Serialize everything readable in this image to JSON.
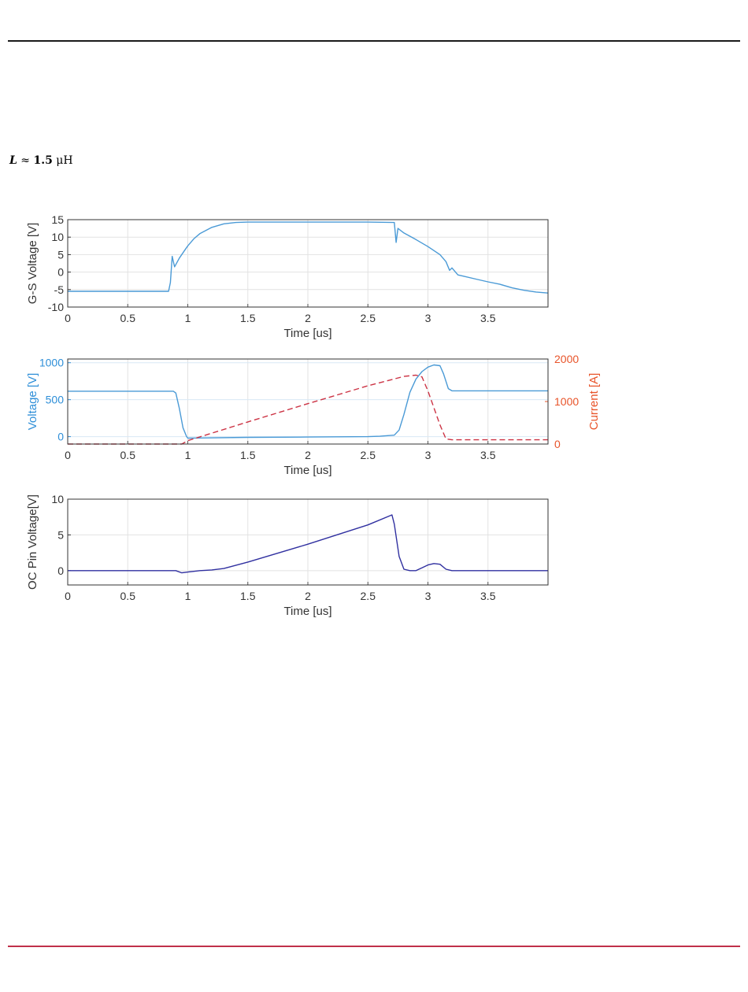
{
  "formula": {
    "variable": "L",
    "approx": "≈",
    "value": "1.5",
    "unit": "μH"
  },
  "chart_data": [
    {
      "type": "line",
      "xlabel": "Time [us]",
      "ylabel": "G-S Voltage [V]",
      "xlim": [
        0,
        4
      ],
      "ylim": [
        -10,
        15
      ],
      "xticks": [
        "0",
        "0.5",
        "1",
        "1.5",
        "2",
        "2.5",
        "3",
        "3.5"
      ],
      "yticks": [
        "15",
        "10",
        "5",
        "0",
        "-5",
        "-10"
      ],
      "grid": true,
      "series": [
        {
          "color": "#4a9ad6",
          "x": [
            0,
            0.84,
            0.855,
            0.87,
            0.89,
            0.93,
            0.98,
            1.0,
            1.05,
            1.1,
            1.2,
            1.3,
            1.4,
            1.5,
            2.0,
            2.5,
            2.72,
            2.735,
            2.75,
            2.8,
            2.9,
            3.0,
            3.1,
            3.15,
            3.18,
            3.2,
            3.25,
            3.3,
            3.4,
            3.5,
            3.6,
            3.7,
            3.8,
            3.9,
            4.0
          ],
          "y": [
            -5.5,
            -5.5,
            -3,
            4.5,
            1.5,
            4,
            6.5,
            7.5,
            9.5,
            11,
            12.8,
            13.8,
            14.2,
            14.3,
            14.3,
            14.3,
            14.2,
            8.5,
            12.5,
            11.2,
            9.3,
            7.3,
            5,
            3,
            0.5,
            1.2,
            -0.8,
            -1.2,
            -2,
            -2.8,
            -3.5,
            -4.5,
            -5.2,
            -5.7,
            -6
          ]
        }
      ]
    },
    {
      "type": "line",
      "xlabel": "Time [us]",
      "ylabel": "Voltage [V]",
      "ylabel_right": "Current [A]",
      "xlim": [
        0,
        4
      ],
      "ylim": [
        -100,
        1050
      ],
      "ylim_right": [
        0,
        2000
      ],
      "xticks": [
        "0",
        "0.5",
        "1",
        "1.5",
        "2",
        "2.5",
        "3",
        "3.5"
      ],
      "yticks": [
        "1000",
        "500",
        "0"
      ],
      "yticks_right": [
        "2000",
        "1000",
        "0"
      ],
      "grid": true,
      "colors": {
        "left": "#2f8fd8",
        "right": "#e8542a"
      },
      "series": [
        {
          "axis": "left",
          "color": "#4a9ad6",
          "x": [
            0,
            0.88,
            0.9,
            0.93,
            0.96,
            0.99,
            1.0,
            1.5,
            2.0,
            2.5,
            2.6,
            2.72,
            2.76,
            2.8,
            2.85,
            2.9,
            2.95,
            3.0,
            3.05,
            3.1,
            3.13,
            3.17,
            3.2,
            4.0
          ],
          "y": [
            615,
            615,
            590,
            380,
            120,
            0,
            -20,
            -10,
            -5,
            0,
            5,
            20,
            90,
            300,
            600,
            780,
            880,
            940,
            970,
            960,
            850,
            650,
            620,
            620
          ]
        },
        {
          "axis": "right",
          "color": "#cc3344",
          "dashed": true,
          "x": [
            0,
            0.95,
            1.0,
            1.5,
            2.0,
            2.5,
            2.8,
            2.9,
            2.95,
            3.0,
            3.1,
            3.15,
            3.2,
            4.0
          ],
          "y": [
            0,
            0,
            80,
            520,
            950,
            1370,
            1590,
            1620,
            1580,
            1250,
            450,
            120,
            100,
            100
          ]
        }
      ]
    },
    {
      "type": "line",
      "xlabel": "Time [us]",
      "ylabel": "OC Pin Voltage[V]",
      "xlim": [
        0,
        4
      ],
      "ylim": [
        -2,
        10
      ],
      "xticks": [
        "0",
        "0.5",
        "1",
        "1.5",
        "2",
        "2.5",
        "3",
        "3.5"
      ],
      "yticks": [
        "10",
        "5",
        "0"
      ],
      "grid": true,
      "series": [
        {
          "color": "#3030a0",
          "x": [
            0,
            0.84,
            0.9,
            0.95,
            1.0,
            1.1,
            1.2,
            1.3,
            1.5,
            2.0,
            2.5,
            2.7,
            2.72,
            2.76,
            2.8,
            2.85,
            2.9,
            2.95,
            3.0,
            3.05,
            3.1,
            3.15,
            3.2,
            3.3,
            4.0
          ],
          "y": [
            0,
            0,
            0,
            -0.3,
            -0.2,
            0,
            0.1,
            0.3,
            1.2,
            3.7,
            6.4,
            7.8,
            6.5,
            2.0,
            0.2,
            0,
            0,
            0.4,
            0.8,
            1.0,
            0.9,
            0.2,
            0,
            0,
            0
          ]
        }
      ]
    }
  ]
}
